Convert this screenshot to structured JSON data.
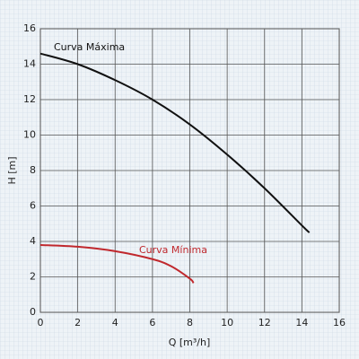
{
  "chart_data": {
    "type": "line",
    "xlabel": "Q [m³/h]",
    "ylabel": "H [m]",
    "xlim": [
      0,
      16
    ],
    "ylim": [
      0,
      16
    ],
    "xticks": [
      0,
      2,
      4,
      6,
      8,
      10,
      12,
      14,
      16
    ],
    "yticks": [
      0,
      2,
      4,
      6,
      8,
      10,
      12,
      14,
      16
    ],
    "grid": true,
    "series": [
      {
        "name": "Curva Máxima",
        "color": "#111111",
        "x": [
          0,
          2,
          4,
          6,
          8,
          10,
          12,
          14,
          14.4
        ],
        "values": [
          14.6,
          14.0,
          13.1,
          12.0,
          10.6,
          8.9,
          7.0,
          4.9,
          4.5
        ]
      },
      {
        "name": "Curva Mínima",
        "color": "#c0282d",
        "x": [
          0,
          2,
          4,
          6,
          7,
          8,
          8.2
        ],
        "values": [
          3.8,
          3.7,
          3.45,
          3.0,
          2.6,
          1.9,
          1.65
        ]
      }
    ]
  }
}
